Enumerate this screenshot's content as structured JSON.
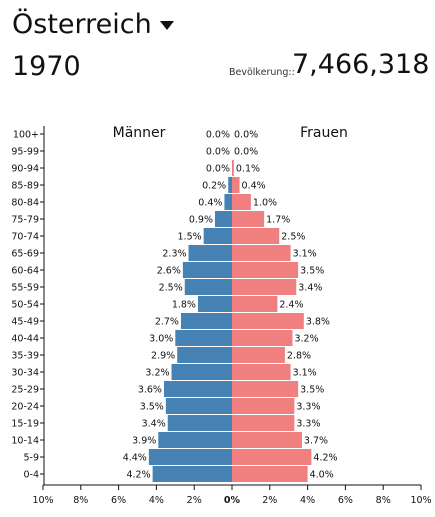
{
  "header": {
    "country": "Österreich",
    "country_dropdown_icon": "caret-down-icon",
    "year": "1970",
    "population_label": "Bevölkerung::",
    "population_value": "7,466,318"
  },
  "colors": {
    "male": "#4682b4",
    "female": "#f08080"
  },
  "chart_data": {
    "type": "bar",
    "orientation": "horizontal-pyramid",
    "series_labels": {
      "male": "Männer",
      "female": "Frauen"
    },
    "categories": [
      "100+",
      "95-99",
      "90-94",
      "85-89",
      "80-84",
      "75-79",
      "70-74",
      "65-69",
      "60-64",
      "55-59",
      "50-54",
      "45-49",
      "40-44",
      "35-39",
      "30-34",
      "25-29",
      "20-24",
      "15-19",
      "10-14",
      "5-9",
      "0-4"
    ],
    "series": [
      {
        "name": "Männer",
        "values": [
          0.0,
          0.0,
          0.0,
          0.2,
          0.4,
          0.9,
          1.5,
          2.3,
          2.6,
          2.5,
          1.8,
          2.7,
          3.0,
          2.9,
          3.2,
          3.6,
          3.5,
          3.4,
          3.9,
          4.4,
          4.2
        ]
      },
      {
        "name": "Frauen",
        "values": [
          0.0,
          0.0,
          0.1,
          0.4,
          1.0,
          1.7,
          2.5,
          3.1,
          3.5,
          3.4,
          2.4,
          3.8,
          3.2,
          2.8,
          3.1,
          3.5,
          3.3,
          3.3,
          3.7,
          4.2,
          4.0
        ]
      }
    ],
    "value_labels": {
      "male": [
        "0.0%",
        "0.0%",
        "0.0%",
        "0.2%",
        "0.4%",
        "0.9%",
        "1.5%",
        "2.3%",
        "2.6%",
        "2.5%",
        "1.8%",
        "2.7%",
        "3.0%",
        "2.9%",
        "3.2%",
        "3.6%",
        "3.5%",
        "3.4%",
        "3.9%",
        "4.4%",
        "4.2%"
      ],
      "female": [
        "0.0%",
        "0.0%",
        "0.1%",
        "0.4%",
        "1.0%",
        "1.7%",
        "2.5%",
        "3.1%",
        "3.5%",
        "3.4%",
        "2.4%",
        "3.8%",
        "3.2%",
        "2.8%",
        "3.1%",
        "3.5%",
        "3.3%",
        "3.3%",
        "3.7%",
        "4.2%",
        "4.0%"
      ]
    },
    "xlim": [
      -10,
      10
    ],
    "x_ticks": [
      "10%",
      "8%",
      "6%",
      "4%",
      "2%",
      "0%",
      "2%",
      "4%",
      "6%",
      "8%",
      "10%"
    ],
    "grid": false
  }
}
